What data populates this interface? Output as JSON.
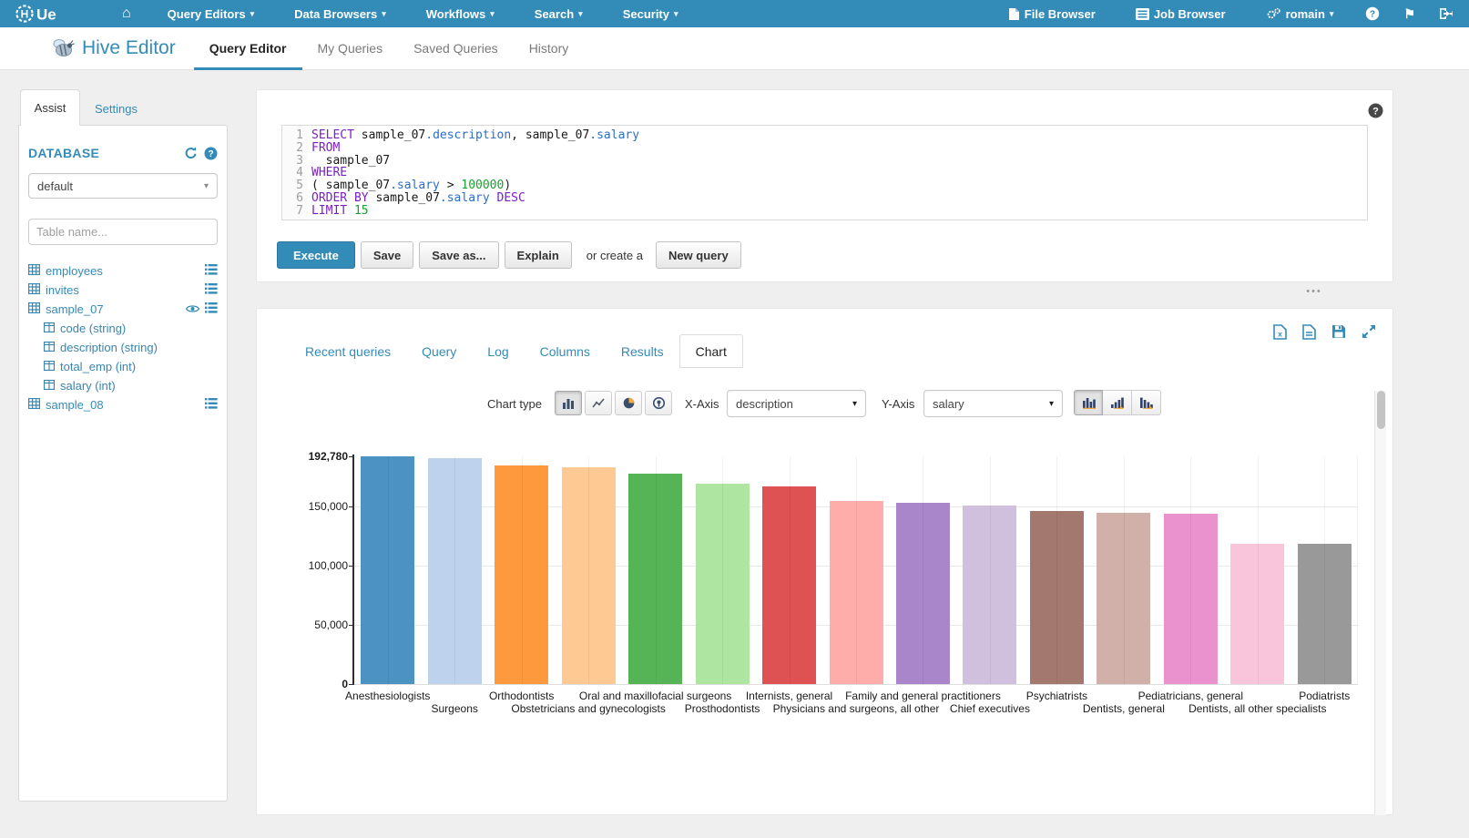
{
  "accent": "#338bb8",
  "topnav": {
    "brand": "HUE",
    "menus": [
      {
        "label": "Query Editors",
        "caret": true
      },
      {
        "label": "Data Browsers",
        "caret": true
      },
      {
        "label": "Workflows",
        "caret": true
      },
      {
        "label": "Search",
        "caret": true
      },
      {
        "label": "Security",
        "caret": true
      }
    ],
    "right_menus": [
      {
        "label": "File Browser",
        "icon": "file-icon"
      },
      {
        "label": "Job Browser",
        "icon": "list-icon"
      },
      {
        "label": "romain",
        "icon": "gears-icon",
        "caret": true
      }
    ],
    "icon_buttons": [
      "help-icon",
      "flags-icon",
      "sign-out-icon"
    ],
    "home_glyph": "⌂",
    "caret_glyph": "▾",
    "flag_glyph": "⚑"
  },
  "header": {
    "title": "Hive Editor",
    "tabs": [
      {
        "label": "Query Editor",
        "active": true
      },
      {
        "label": "My Queries"
      },
      {
        "label": "Saved Queries"
      },
      {
        "label": "History"
      }
    ]
  },
  "assist": {
    "tabs": [
      {
        "label": "Assist",
        "active": true
      },
      {
        "label": "Settings"
      }
    ],
    "section_title": "DATABASE",
    "database_value": "default",
    "table_filter_placeholder": "Table name...",
    "tables": [
      {
        "name": "employees",
        "has_menu": true,
        "columns": []
      },
      {
        "name": "invites",
        "has_menu": true,
        "columns": []
      },
      {
        "name": "sample_07",
        "has_menu": true,
        "has_eye": true,
        "columns": [
          "code (string)",
          "description (string)",
          "total_emp (int)",
          "salary (int)"
        ]
      },
      {
        "name": "sample_08",
        "has_menu": true,
        "columns": []
      }
    ]
  },
  "editor": {
    "lines": [
      [
        [
          "kw",
          "SELECT"
        ],
        [
          "pl",
          " sample_07"
        ],
        [
          "fld",
          ".description"
        ],
        [
          "pl",
          ", sample_07"
        ],
        [
          "fld",
          ".salary"
        ]
      ],
      [
        [
          "kw",
          "FROM"
        ]
      ],
      [
        [
          "pl",
          "  sample_07"
        ]
      ],
      [
        [
          "kw",
          "WHERE"
        ]
      ],
      [
        [
          "pl",
          "( sample_07"
        ],
        [
          "fld",
          ".salary"
        ],
        [
          "pl",
          " > "
        ],
        [
          "num",
          "100000"
        ],
        [
          "pl",
          ")"
        ]
      ],
      [
        [
          "kw",
          "ORDER BY"
        ],
        [
          "pl",
          " sample_07"
        ],
        [
          "fld",
          ".salary"
        ],
        [
          "kw",
          " DESC"
        ]
      ],
      [
        [
          "kw",
          "LIMIT"
        ],
        [
          "num",
          " 15"
        ]
      ]
    ],
    "help_glyph": "?"
  },
  "actions": {
    "execute": "Execute",
    "save": "Save",
    "save_as": "Save as...",
    "explain": "Explain",
    "or_create_a": "or create a",
    "new_query": "New query",
    "resize_handle": "•••"
  },
  "results": {
    "tabs": [
      {
        "label": "Recent queries"
      },
      {
        "label": "Query"
      },
      {
        "label": "Log"
      },
      {
        "label": "Columns"
      },
      {
        "label": "Results"
      },
      {
        "label": "Chart",
        "active": true
      }
    ],
    "toolbar_icons": [
      "download-xls-icon",
      "download-csv-icon",
      "save-icon",
      "expand-icon"
    ],
    "chart_controls": {
      "type_label": "Chart type",
      "type_buttons": [
        {
          "name": "bars",
          "active": true
        },
        {
          "name": "lines",
          "active": false
        },
        {
          "name": "pie",
          "active": false
        },
        {
          "name": "map",
          "active": false
        }
      ],
      "x_axis_label": "X-Axis",
      "x_axis_value": "description",
      "y_axis_label": "Y-Axis",
      "y_axis_value": "salary",
      "display_buttons": [
        {
          "name": "grouped-bars",
          "active": true
        },
        {
          "name": "sorted-asc",
          "active": false
        },
        {
          "name": "sorted-desc",
          "active": false
        }
      ]
    }
  },
  "chart_data": {
    "type": "bar",
    "title": "",
    "xlabel": "description",
    "ylabel": "salary",
    "categories": [
      "Anesthesiologists",
      "Surgeons",
      "Orthodontists",
      "Obstetricians and gynecologists",
      "Oral and maxillofacial surgeons",
      "Prosthodontists",
      "Internists, general",
      "Physicians and surgeons, all other",
      "Family and general practitioners",
      "Chief executives",
      "Psychiatrists",
      "Dentists, general",
      "Pediatricians, general",
      "Dentists, all other specialists",
      "Podiatrists"
    ],
    "values": [
      192780,
      191410,
      185340,
      183600,
      178440,
      169810,
      167270,
      155150,
      153640,
      151370,
      146150,
      145240,
      144430,
      118800,
      118500
    ],
    "colors": [
      "#4C92C3",
      "#BED2ED",
      "#FF993E",
      "#FFC993",
      "#56B356",
      "#ADE5A1",
      "#DE5253",
      "#FFADAB",
      "#A985CA",
      "#D1C0DD",
      "#A3786F",
      "#D0B0A9",
      "#E992CE",
      "#F9C5DB",
      "#999999"
    ],
    "ylim": [
      0,
      192780
    ],
    "yticks": [
      {
        "value": 192780,
        "label": "192,780",
        "bold": true,
        "grid": false
      },
      {
        "value": 150000,
        "label": "150,000",
        "bold": false,
        "grid": true
      },
      {
        "value": 100000,
        "label": "100,000",
        "bold": false,
        "grid": true
      },
      {
        "value": 50000,
        "label": "50,000",
        "bold": false,
        "grid": true
      },
      {
        "value": 0,
        "label": "0",
        "bold": true,
        "grid": false
      }
    ],
    "grid": "horizontal gridlines + faint vertical slot lines",
    "legend": "none",
    "label_layout": "two-row staggered x labels"
  }
}
